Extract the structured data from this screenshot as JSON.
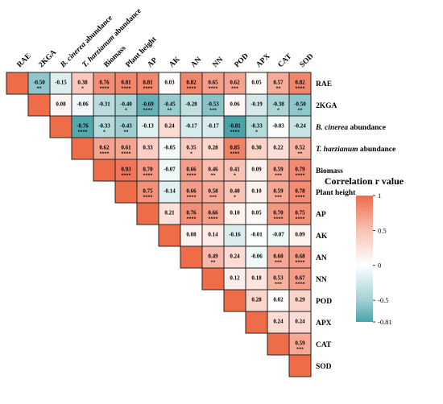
{
  "chart_data": {
    "type": "heatmap",
    "variables": [
      "RAE",
      "2KGA",
      "B. cinerea abundance",
      "T. harzianum abundance",
      "Biomass",
      "Plant height",
      "AP",
      "AK",
      "AN",
      "NN",
      "POD",
      "APX",
      "CAT",
      "SOD"
    ],
    "rows": [
      {
        "values": [
          1,
          -0.5,
          -0.15,
          0.38,
          0.76,
          0.81,
          0.81,
          0.03,
          0.82,
          0.65,
          0.62,
          0.05,
          0.57,
          0.82
        ],
        "sig": [
          "",
          "**",
          "",
          "*",
          "****",
          "****",
          "****",
          "",
          "****",
          "****",
          "***",
          "",
          "**",
          "****"
        ]
      },
      {
        "values": [
          null,
          1,
          0.08,
          -0.06,
          -0.31,
          -0.4,
          -0.69,
          -0.45,
          -0.28,
          -0.53,
          0.06,
          -0.19,
          -0.38,
          -0.5
        ],
        "sig": [
          "",
          "",
          "",
          "",
          "",
          "*",
          "****",
          "**",
          "",
          "***",
          "",
          "",
          "*",
          "**"
        ]
      },
      {
        "values": [
          null,
          null,
          1,
          -0.76,
          -0.33,
          -0.43,
          -0.13,
          0.24,
          -0.17,
          -0.17,
          -0.81,
          -0.33,
          -0.03,
          -0.24
        ],
        "sig": [
          "",
          "",
          "",
          "****",
          "*",
          "**",
          "",
          "",
          "",
          "",
          "****",
          "*",
          "",
          ""
        ]
      },
      {
        "values": [
          null,
          null,
          null,
          1,
          0.62,
          0.61,
          0.33,
          -0.05,
          0.35,
          0.28,
          0.85,
          0.3,
          0.22,
          0.52
        ],
        "sig": [
          "",
          "",
          "",
          "",
          "****",
          "****",
          "",
          "",
          "*",
          "",
          "****",
          "",
          "",
          "**"
        ]
      },
      {
        "values": [
          null,
          null,
          null,
          null,
          1,
          0.93,
          0.7,
          -0.07,
          0.66,
          0.46,
          0.41,
          0.09,
          0.59,
          0.79
        ],
        "sig": [
          "",
          "",
          "",
          "",
          "",
          "****",
          "****",
          "",
          "****",
          "**",
          "*",
          "",
          "***",
          "****"
        ]
      },
      {
        "values": [
          null,
          null,
          null,
          null,
          null,
          1,
          0.75,
          -0.14,
          0.66,
          0.58,
          0.4,
          0.1,
          0.59,
          0.78
        ],
        "sig": [
          "",
          "",
          "",
          "",
          "",
          "",
          "****",
          "",
          "****",
          "***",
          "*",
          "",
          "***",
          "****"
        ]
      },
      {
        "values": [
          null,
          null,
          null,
          null,
          null,
          null,
          1,
          0.21,
          0.76,
          0.66,
          0.1,
          0.05,
          0.7,
          0.75
        ],
        "sig": [
          "",
          "",
          "",
          "",
          "",
          "",
          "",
          "",
          "****",
          "****",
          "",
          "",
          "****",
          "****"
        ]
      },
      {
        "values": [
          null,
          null,
          null,
          null,
          null,
          null,
          null,
          1,
          0.08,
          0.14,
          -0.16,
          -0.01,
          -0.07,
          0.09
        ],
        "sig": [
          "",
          "",
          "",
          "",
          "",
          "",
          "",
          "",
          "",
          "",
          "",
          "",
          "",
          ""
        ]
      },
      {
        "values": [
          null,
          null,
          null,
          null,
          null,
          null,
          null,
          null,
          1,
          0.49,
          0.24,
          -0.06,
          0.6,
          0.68
        ],
        "sig": [
          "",
          "",
          "",
          "",
          "",
          "",
          "",
          "",
          "",
          "**",
          "",
          "",
          "***",
          "****"
        ]
      },
      {
        "values": [
          null,
          null,
          null,
          null,
          null,
          null,
          null,
          null,
          null,
          1,
          0.12,
          0.18,
          0.53,
          0.67
        ],
        "sig": [
          "",
          "",
          "",
          "",
          "",
          "",
          "",
          "",
          "",
          "",
          "",
          "",
          "***",
          "****"
        ]
      },
      {
        "values": [
          null,
          null,
          null,
          null,
          null,
          null,
          null,
          null,
          null,
          null,
          1,
          0.28,
          0.02,
          0.29
        ],
        "sig": [
          "",
          "",
          "",
          "",
          "",
          "",
          "",
          "",
          "",
          "",
          "",
          "",
          "",
          ""
        ]
      },
      {
        "values": [
          null,
          null,
          null,
          null,
          null,
          null,
          null,
          null,
          null,
          null,
          null,
          1,
          0.24,
          0.24
        ],
        "sig": [
          "",
          "",
          "",
          "",
          "",
          "",
          "",
          "",
          "",
          "",
          "",
          "",
          "",
          ""
        ]
      },
      {
        "values": [
          null,
          null,
          null,
          null,
          null,
          null,
          null,
          null,
          null,
          null,
          null,
          null,
          1,
          0.59
        ],
        "sig": [
          "",
          "",
          "",
          "",
          "",
          "",
          "",
          "",
          "",
          "",
          "",
          "",
          "",
          "***"
        ]
      },
      {
        "values": [
          null,
          null,
          null,
          null,
          null,
          null,
          null,
          null,
          null,
          null,
          null,
          null,
          null,
          1
        ],
        "sig": [
          "",
          "",
          "",
          "",
          "",
          "",
          "",
          "",
          "",
          "",
          "",
          "",
          "",
          ""
        ]
      }
    ],
    "legend_title": "Correlation r value",
    "legend_ticks": [
      "1",
      "0.5",
      "0",
      "-0.5",
      "-0.81"
    ],
    "color_range": [
      -0.81,
      1
    ],
    "colors": {
      "positive": "#ef6b4c",
      "neutral": "#ffffff",
      "negative": "#4aa3a8",
      "diagonal": "#ee6d48",
      "border": "#222222"
    }
  }
}
